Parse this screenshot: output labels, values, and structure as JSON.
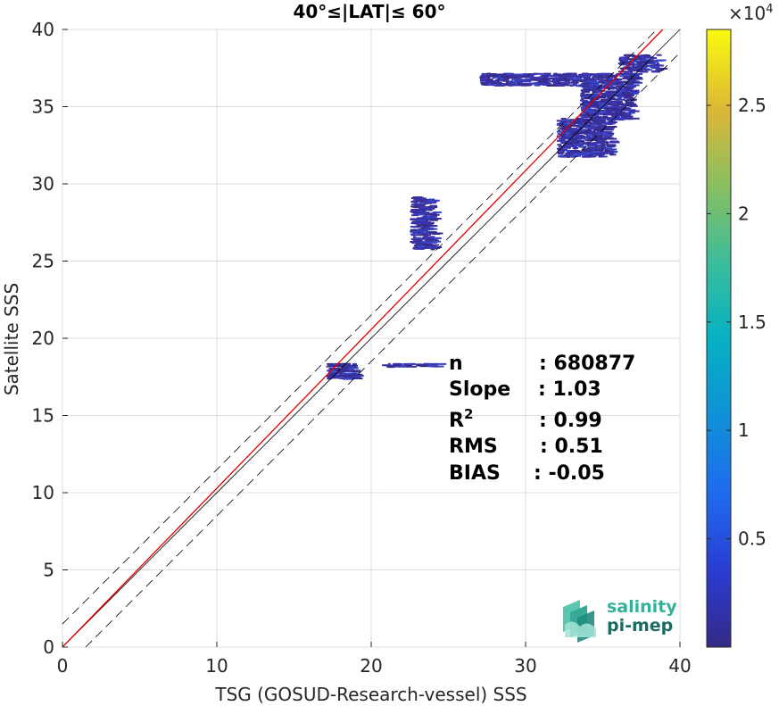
{
  "chart_data": {
    "type": "heatmap",
    "title": "40°≤|LAT|≤ 60°",
    "xlabel": "TSG (GOSUD-Research-vessel) SSS",
    "ylabel": "Satellite SSS",
    "xlim": [
      0,
      40
    ],
    "ylim": [
      0,
      40
    ],
    "xticks": [
      "0",
      "10",
      "20",
      "30",
      "40"
    ],
    "yticks": [
      "0",
      "5",
      "10",
      "15",
      "20",
      "25",
      "30",
      "35",
      "40"
    ],
    "colorbar": {
      "exponent_label": "×10",
      "exponent": "4",
      "ticks": [
        "0.5",
        "1",
        "1.5",
        "2",
        "2.5"
      ],
      "range": [
        0,
        28500
      ]
    },
    "lines": {
      "identity": {
        "color": "#000000",
        "style": "solid"
      },
      "identity_plus_minus_offset": {
        "offset": 1.5,
        "color": "#000000",
        "style": "dashed"
      },
      "regression": {
        "slope": 1.03,
        "intercept": -0.05,
        "color": "#e00000"
      }
    },
    "stats": [
      {
        "label": "n",
        "value": ": 680877"
      },
      {
        "label": "Slope",
        "value": ": 1.03"
      },
      {
        "label": "R",
        "sup": "2",
        "value": ": 0.99"
      },
      {
        "label": "RMS",
        "value": ": 0.51"
      },
      {
        "label": "BIAS",
        "value": ": -0.05"
      }
    ],
    "density_clusters": [
      {
        "x": [
          36.0,
          38.6
        ],
        "y": [
          37.3,
          38.4
        ]
      },
      {
        "x": [
          27.0,
          37.0
        ],
        "y": [
          36.4,
          37.2
        ]
      },
      {
        "x": [
          33.5,
          36.8
        ],
        "y": [
          34.2,
          36.5
        ]
      },
      {
        "x": [
          32.0,
          35.5
        ],
        "y": [
          31.8,
          34.3
        ]
      },
      {
        "x": [
          17.0,
          18.9
        ],
        "y": [
          17.4,
          18.4
        ]
      },
      {
        "x": [
          20.5,
          24.5
        ],
        "y": [
          18.2,
          18.4
        ]
      },
      {
        "x": [
          22.5,
          24.0
        ],
        "y": [
          25.8,
          29.2
        ]
      }
    ],
    "grid": true
  },
  "logo": {
    "line1": "salinity",
    "line2": "pi-mep"
  }
}
